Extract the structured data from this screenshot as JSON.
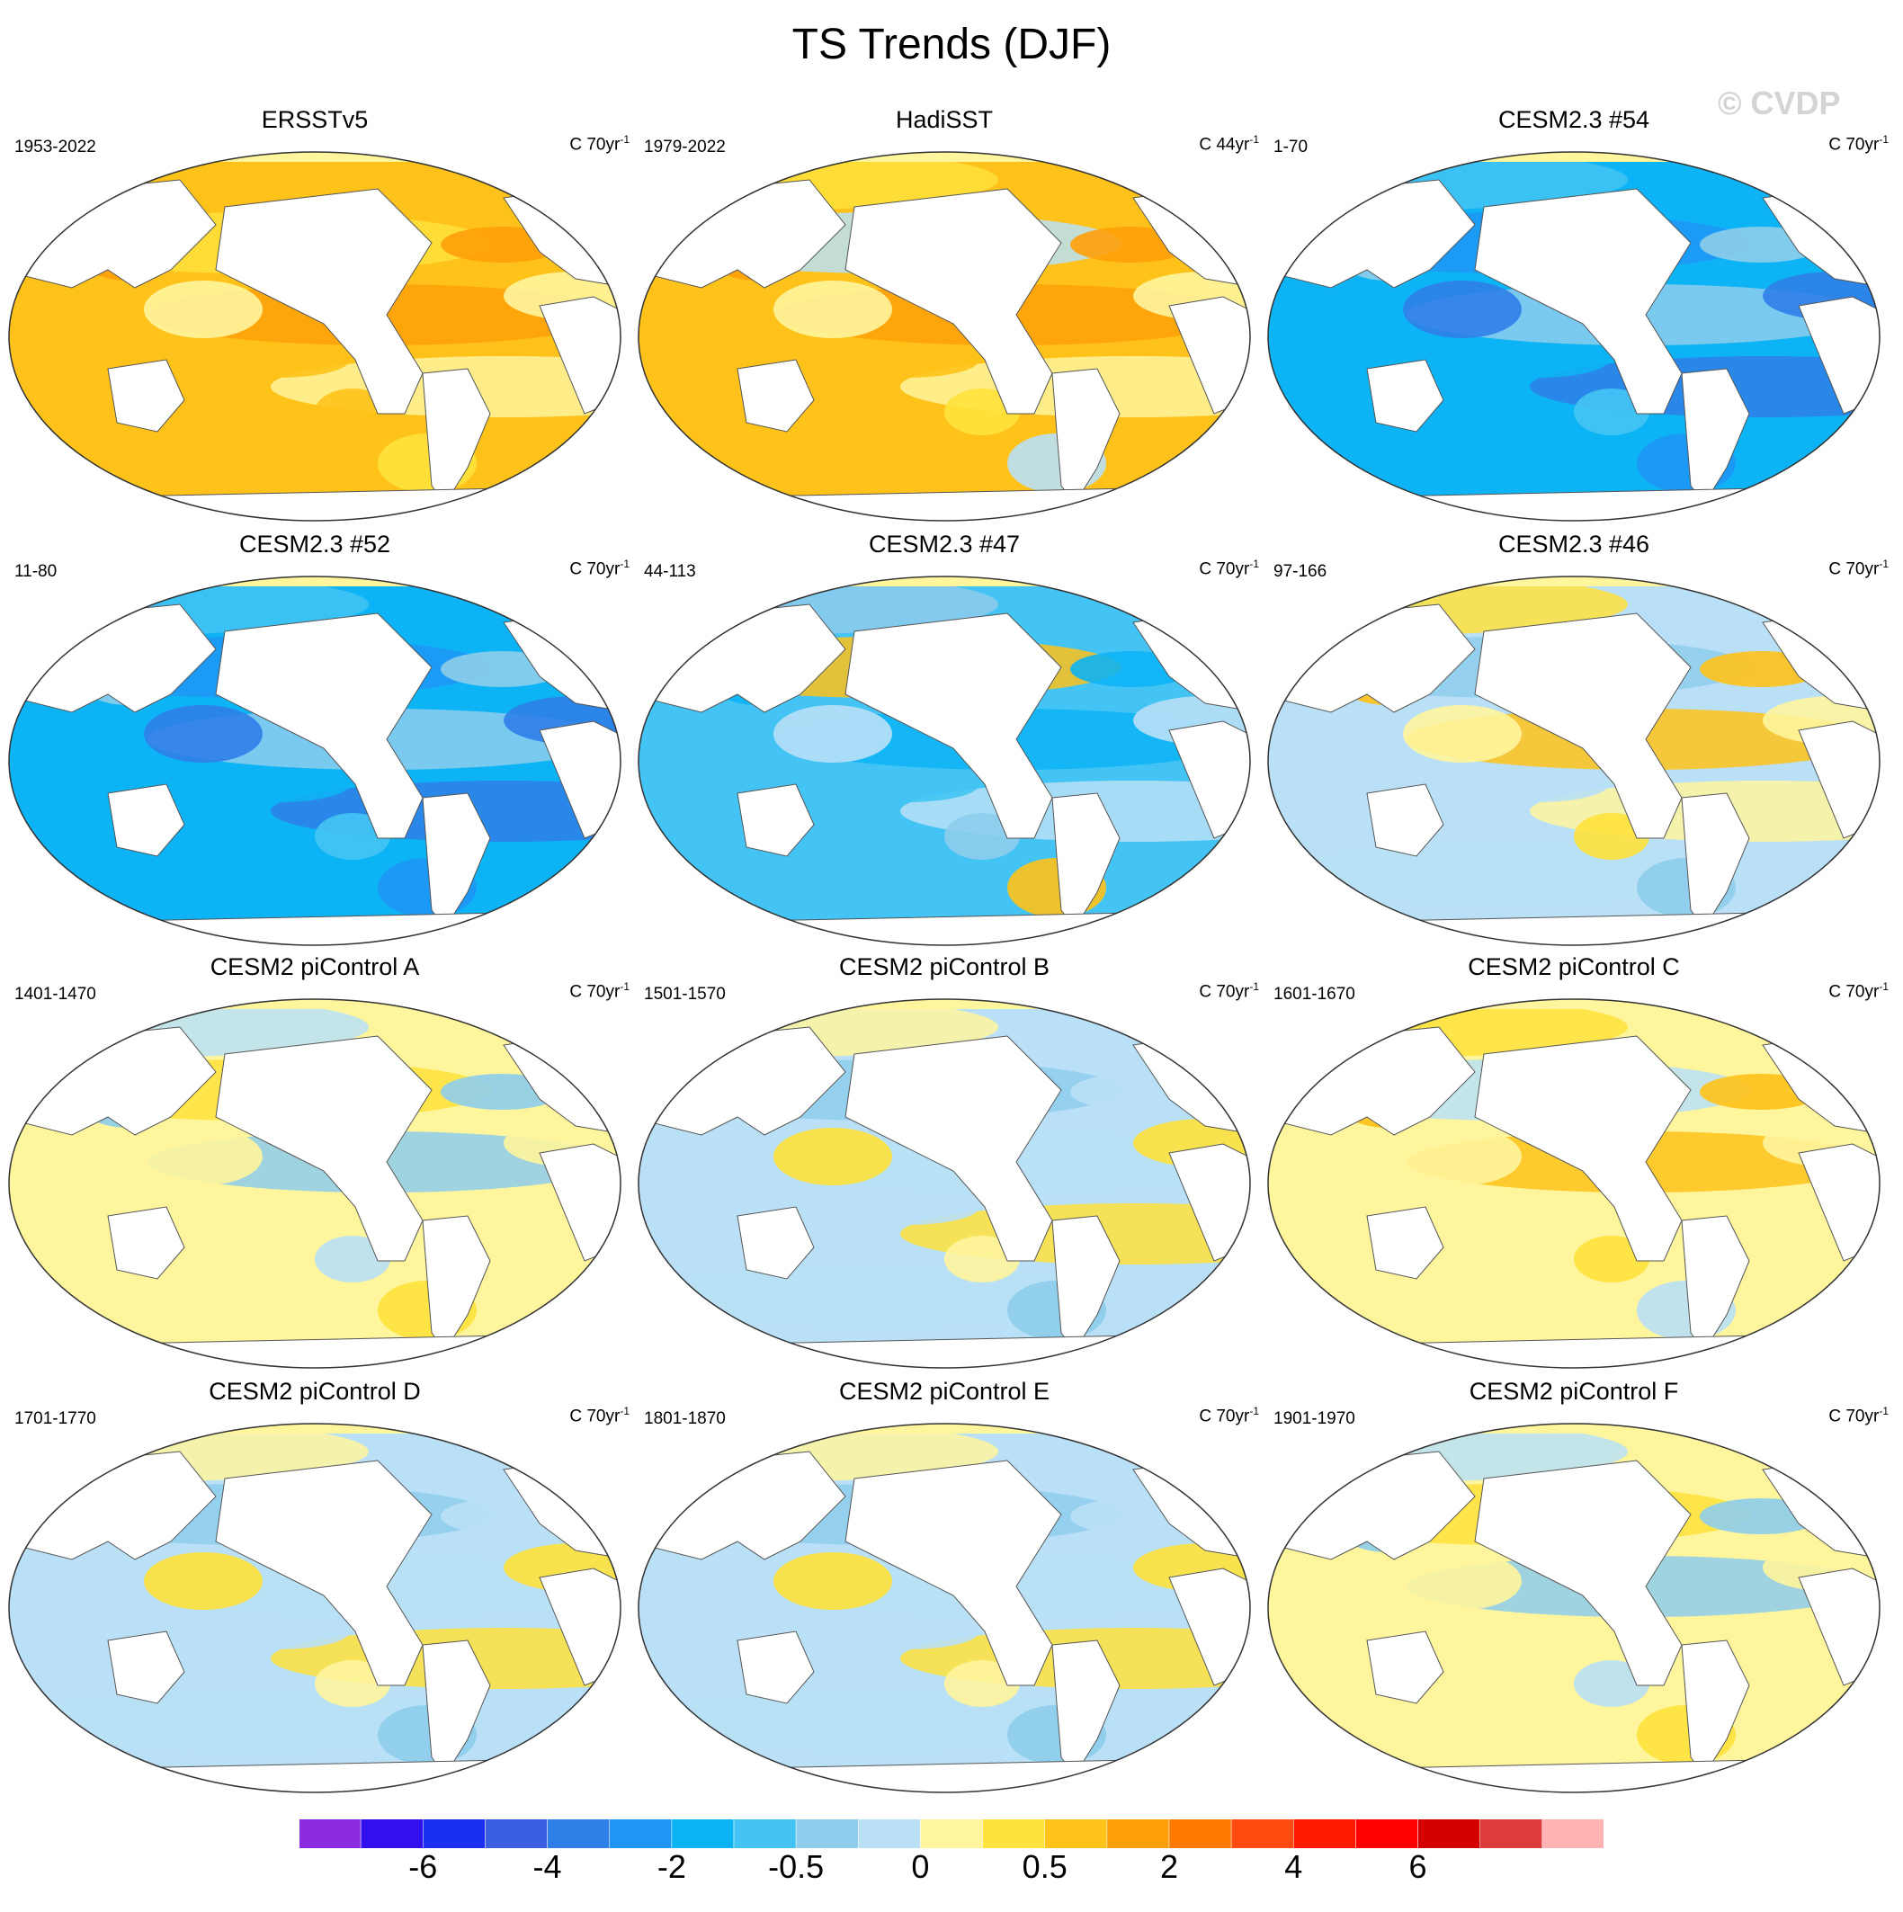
{
  "figure": {
    "title": "TS Trends (DJF)",
    "watermark": "© CVDP"
  },
  "chart_data": [
    {
      "type": "map",
      "title": "ERSSTv5",
      "period": "1953-2022",
      "units": "C 70yr",
      "units_exp": "-1",
      "pattern": "warm-strong"
    },
    {
      "type": "map",
      "title": "HadiSST",
      "period": "1979-2022",
      "units": "C 44yr",
      "units_exp": "-1",
      "pattern": "warm-mixed"
    },
    {
      "type": "map",
      "title": "CESM2.3 #54",
      "period": "1-70",
      "units": "C 70yr",
      "units_exp": "-1",
      "pattern": "cold-strong"
    },
    {
      "type": "map",
      "title": "CESM2.3 #52",
      "period": "11-80",
      "units": "C 70yr",
      "units_exp": "-1",
      "pattern": "cold-strong"
    },
    {
      "type": "map",
      "title": "CESM2.3 #47",
      "period": "44-113",
      "units": "C 70yr",
      "units_exp": "-1",
      "pattern": "cold-mixed"
    },
    {
      "type": "map",
      "title": "CESM2.3 #46",
      "period": "97-166",
      "units": "C 70yr",
      "units_exp": "-1",
      "pattern": "mixed-bands"
    },
    {
      "type": "map",
      "title": "CESM2 piControl A",
      "period": "1401-1470",
      "units": "C 70yr",
      "units_exp": "-1",
      "pattern": "weak-mixed"
    },
    {
      "type": "map",
      "title": "CESM2 piControl B",
      "period": "1501-1570",
      "units": "C 70yr",
      "units_exp": "-1",
      "pattern": "weak-cool"
    },
    {
      "type": "map",
      "title": "CESM2 piControl C",
      "period": "1601-1670",
      "units": "C 70yr",
      "units_exp": "-1",
      "pattern": "weak-warm"
    },
    {
      "type": "map",
      "title": "CESM2 piControl D",
      "period": "1701-1770",
      "units": "C 70yr",
      "units_exp": "-1",
      "pattern": "weak-cool"
    },
    {
      "type": "map",
      "title": "CESM2 piControl E",
      "period": "1801-1870",
      "units": "C 70yr",
      "units_exp": "-1",
      "pattern": "weak-cool"
    },
    {
      "type": "map",
      "title": "CESM2 piControl F",
      "period": "1901-1970",
      "units": "C 70yr",
      "units_exp": "-1",
      "pattern": "weak-mixed"
    }
  ],
  "colorbar": {
    "colors": [
      "#8a2be2",
      "#3311ee",
      "#1a2ff0",
      "#3a5fe0",
      "#2f7fe8",
      "#1e96f5",
      "#0db4f5",
      "#44c4f4",
      "#8ecdec",
      "#b9e0f6",
      "#fff59d",
      "#ffe23c",
      "#ffc21a",
      "#ffa00a",
      "#ff7a00",
      "#ff4a10",
      "#ff1a00",
      "#ff0000",
      "#d40000",
      "#dc3c3c",
      "#ffb3b3"
    ],
    "labels": [
      "-6",
      "-4",
      "-2",
      "-0.5",
      "0",
      "0.5",
      "2",
      "4",
      "6"
    ],
    "label_boundaries": [
      2,
      4,
      6,
      8,
      10,
      12,
      14,
      16,
      18
    ]
  }
}
